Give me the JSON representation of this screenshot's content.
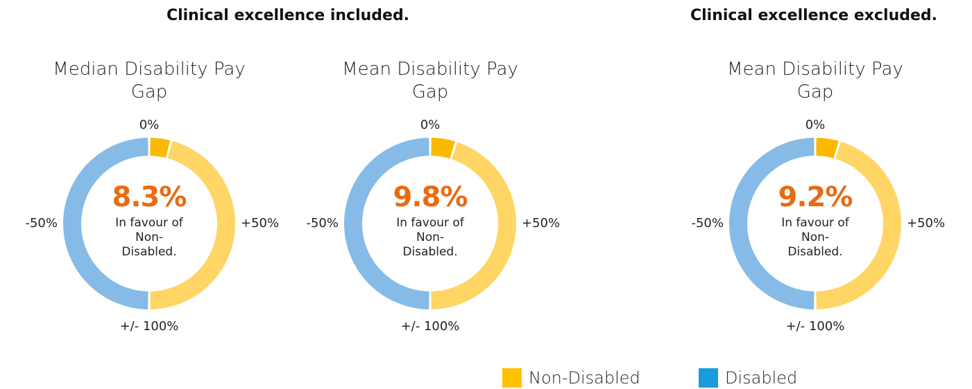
{
  "headings": [
    "Clinical excellence included.",
    "Clinical excellence excluded."
  ],
  "legend": [
    {
      "name": "Non-Disabled",
      "color": "#ffc000"
    },
    {
      "name": "Disabled",
      "color": "#1a9cdc"
    }
  ],
  "chart_data": [
    {
      "type": "gauge",
      "title": "Median Disability Pay Gap",
      "value": 8.3,
      "value_label": "8.3%",
      "caption": "In favour of Non-Disabled.",
      "lim": [
        -100,
        100
      ],
      "ticks": [
        {
          "value": 0,
          "label": "0%"
        },
        {
          "value": 50,
          "label": "+50%"
        },
        {
          "value": 100,
          "label": "+/- 100%"
        },
        {
          "value": -50,
          "label": "-50%"
        }
      ],
      "colors": [
        "#fbb900",
        "#ffd666",
        "#85bbe6"
      ]
    },
    {
      "type": "gauge",
      "title": "Mean Disability Pay Gap",
      "value": 9.8,
      "value_label": "9.8%",
      "caption": "In favour of Non-Disabled.",
      "lim": [
        -100,
        100
      ],
      "ticks": [
        {
          "value": 0,
          "label": "0%"
        },
        {
          "value": 50,
          "label": "+50%"
        },
        {
          "value": 100,
          "label": "+/- 100%"
        },
        {
          "value": -50,
          "label": "-50%"
        }
      ],
      "colors": [
        "#fbb900",
        "#ffd666",
        "#85bbe6"
      ]
    },
    {
      "type": "gauge",
      "title": "Mean Disability Pay Gap",
      "value": 9.2,
      "value_label": "9.2%",
      "caption": "In favour of Non-Disabled.",
      "lim": [
        -100,
        100
      ],
      "ticks": [
        {
          "value": 0,
          "label": "0%"
        },
        {
          "value": 50,
          "label": "+50%"
        },
        {
          "value": 100,
          "label": "+/- 100%"
        },
        {
          "value": -50,
          "label": "-50%"
        }
      ],
      "colors": [
        "#fbb900",
        "#ffd666",
        "#85bbe6"
      ]
    }
  ]
}
